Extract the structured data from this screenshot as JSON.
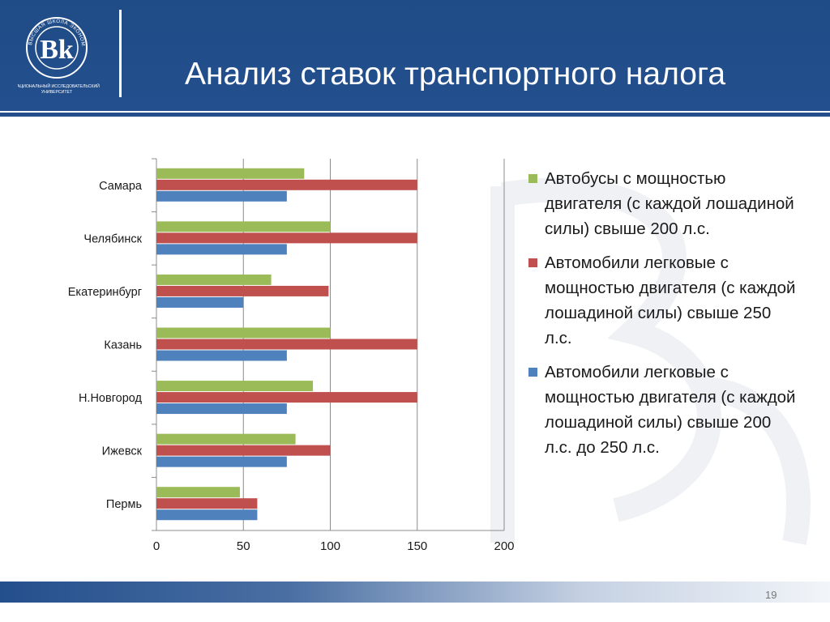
{
  "header": {
    "title": "Анализ ставок транспортного налога",
    "logo_caption_line1": "НАЦИОНАЛЬНЫЙ ИССЛЕДОВАТЕЛЬСКИЙ",
    "logo_caption_line2": "УНИВЕРСИТЕТ",
    "logo_ring_text": "ВЫСШАЯ ШКОЛА ЭКОНОМИКИ",
    "brand_color": "#234f8c"
  },
  "chart_data": {
    "type": "bar",
    "orientation": "horizontal",
    "categories": [
      "Самара",
      "Челябинск",
      "Екатеринбург",
      "Казань",
      "Н.Новгород",
      "Ижевск",
      "Пермь"
    ],
    "series": [
      {
        "name": "Автобусы с мощностью двигателя (с каждой лошадиной силы) свыше 200 л.с.",
        "color": "#9bbb59",
        "values": [
          85,
          100,
          66,
          100,
          90,
          80,
          48
        ]
      },
      {
        "name": "Автомобили легковые с мощностью двигателя (с каждой лошадиной силы) свыше 250 л.с.",
        "color": "#c0504d",
        "values": [
          150,
          150,
          99,
          150,
          150,
          100,
          58
        ]
      },
      {
        "name": "Автомобили легковые с мощностью двигателя (с каждой лошадиной силы) свыше 200 л.с.  до 250 л.с.",
        "color": "#4f81bd",
        "values": [
          75,
          75,
          50,
          75,
          75,
          75,
          58
        ]
      }
    ],
    "xlim": [
      0,
      200
    ],
    "xticks": [
      0,
      50,
      100,
      150,
      200
    ],
    "grid": "vertical",
    "legend": "right"
  },
  "footer": {
    "page_number": "19"
  }
}
